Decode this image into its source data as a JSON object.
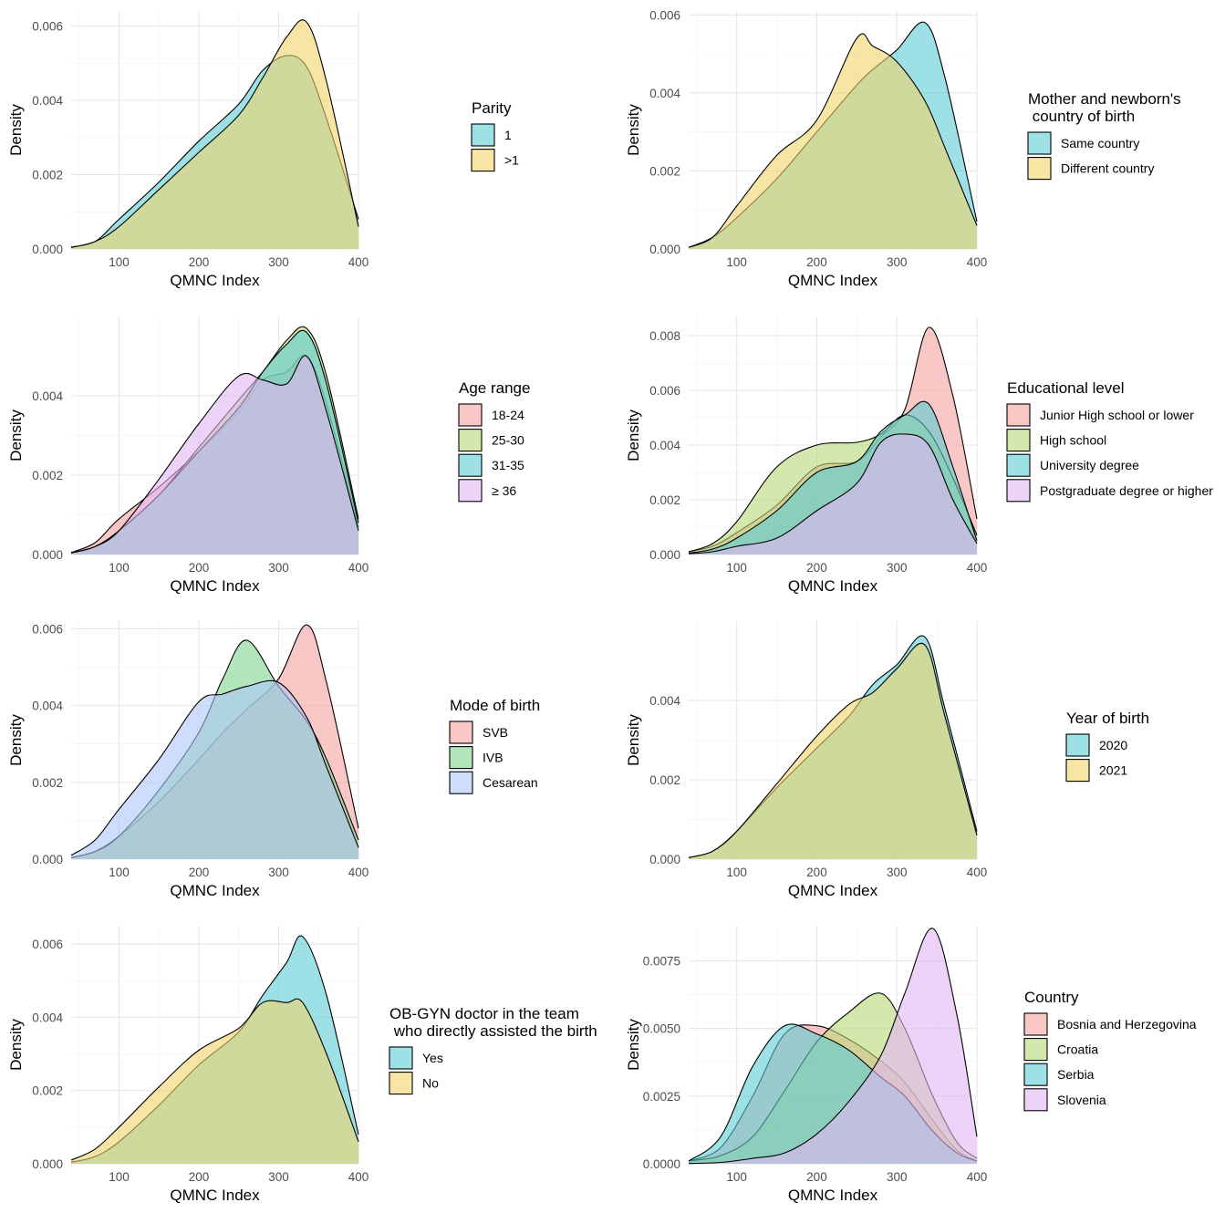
{
  "axis_x_label": "QMNC Index",
  "axis_y_label": "Density",
  "chart_data": [
    {
      "type": "area",
      "xlabel": "QMNC Index",
      "ylabel": "Density",
      "xlim": [
        40,
        400
      ],
      "ylim": [
        0,
        0.0064
      ],
      "xticks": [
        "100",
        "200",
        "300",
        "400"
      ],
      "yticks": [
        "0.000",
        "0.002",
        "0.004",
        "0.006"
      ],
      "ytick_values": [
        0,
        0.002,
        0.004,
        0.006
      ],
      "legend_title": [
        "Parity"
      ],
      "grid": true,
      "legend_position": "right",
      "x": [
        40,
        70,
        100,
        150,
        200,
        250,
        280,
        310,
        335,
        360,
        400
      ],
      "series": [
        {
          "name": "1",
          "color": "#5bcbd4",
          "values": [
            5e-05,
            0.0002,
            0.0008,
            0.0018,
            0.0029,
            0.0039,
            0.0048,
            0.0052,
            0.0049,
            0.0035,
            0.0008
          ]
        },
        {
          "name": ">1",
          "color": "#f2d36a",
          "values": [
            4e-05,
            0.0002,
            0.0006,
            0.0016,
            0.0026,
            0.0036,
            0.0046,
            0.0057,
            0.0061,
            0.0045,
            0.0006
          ]
        }
      ]
    },
    {
      "type": "area",
      "xlabel": "QMNC Index",
      "ylabel": "Density",
      "xlim": [
        40,
        400
      ],
      "ylim": [
        0,
        0.0061
      ],
      "xticks": [
        "100",
        "200",
        "300",
        "400"
      ],
      "yticks": [
        "0.000",
        "0.002",
        "0.004",
        "0.006"
      ],
      "ytick_values": [
        0,
        0.002,
        0.004,
        0.006
      ],
      "legend_title": [
        "Mother and newborn's",
        " country of birth"
      ],
      "grid": true,
      "legend_position": "right",
      "x": [
        40,
        70,
        100,
        150,
        200,
        250,
        270,
        300,
        335,
        360,
        400
      ],
      "series": [
        {
          "name": "Same country",
          "color": "#5bcbd4",
          "values": [
            4e-05,
            0.0003,
            0.0008,
            0.0018,
            0.003,
            0.0042,
            0.0046,
            0.0051,
            0.0058,
            0.0044,
            0.0007
          ]
        },
        {
          "name": "Different country",
          "color": "#f2d36a",
          "values": [
            4e-05,
            0.0003,
            0.0011,
            0.0024,
            0.0033,
            0.0054,
            0.0052,
            0.0048,
            0.0038,
            0.0026,
            0.0006
          ]
        }
      ]
    },
    {
      "type": "area",
      "xlabel": "QMNC Index",
      "ylabel": "Density",
      "xlim": [
        40,
        400
      ],
      "ylim": [
        0,
        0.006
      ],
      "xticks": [
        "100",
        "200",
        "300",
        "400"
      ],
      "yticks": [
        "0.000",
        "0.002",
        "0.004"
      ],
      "ytick_values": [
        0,
        0.002,
        0.004
      ],
      "legend_title": [
        "Age range"
      ],
      "grid": true,
      "legend_position": "right",
      "x": [
        40,
        70,
        100,
        150,
        200,
        250,
        280,
        310,
        335,
        360,
        400
      ],
      "series": [
        {
          "name": "18-24",
          "color": "#f5a3a0",
          "values": [
            5e-05,
            0.0003,
            0.0009,
            0.0017,
            0.0026,
            0.0036,
            0.0044,
            0.0046,
            0.005,
            0.0038,
            0.0007
          ]
        },
        {
          "name": "25-30",
          "color": "#b7d777",
          "values": [
            4e-05,
            0.0002,
            0.0006,
            0.0015,
            0.0027,
            0.0039,
            0.0046,
            0.0054,
            0.0057,
            0.0045,
            0.0009
          ]
        },
        {
          "name": "31-35",
          "color": "#5bcbd4",
          "values": [
            4e-05,
            0.0002,
            0.0006,
            0.0015,
            0.0026,
            0.0037,
            0.0046,
            0.0053,
            0.0056,
            0.0043,
            0.0008
          ]
        },
        {
          "name": "≥ 36",
          "color": "#e3b5f5",
          "values": [
            4e-05,
            0.0002,
            0.0006,
            0.0019,
            0.0033,
            0.0045,
            0.0044,
            0.0043,
            0.005,
            0.0036,
            0.0006
          ]
        }
      ]
    },
    {
      "type": "area",
      "xlabel": "QMNC Index",
      "ylabel": "Density",
      "xlim": [
        40,
        400
      ],
      "ylim": [
        0,
        0.0087
      ],
      "xticks": [
        "100",
        "200",
        "300",
        "400"
      ],
      "yticks": [
        "0.000",
        "0.002",
        "0.004",
        "0.006",
        "0.008"
      ],
      "ytick_values": [
        0,
        0.002,
        0.004,
        0.006,
        0.008
      ],
      "legend_title": [
        "Educational level"
      ],
      "grid": true,
      "legend_position": "right",
      "x": [
        40,
        70,
        100,
        150,
        200,
        250,
        280,
        310,
        340,
        370,
        400
      ],
      "series": [
        {
          "name": "Junior High school or lower",
          "color": "#f5a3a0",
          "values": [
            0.0001,
            0.0003,
            0.0008,
            0.0018,
            0.0032,
            0.0034,
            0.0043,
            0.0053,
            0.0083,
            0.0058,
            0.0013
          ]
        },
        {
          "name": "High school",
          "color": "#b7d777",
          "values": [
            0.0001,
            0.0004,
            0.0012,
            0.0032,
            0.004,
            0.0041,
            0.0044,
            0.0051,
            0.0045,
            0.0028,
            0.0007
          ]
        },
        {
          "name": "University degree",
          "color": "#5bcbd4",
          "values": [
            5e-05,
            0.0002,
            0.0006,
            0.0016,
            0.003,
            0.0034,
            0.0045,
            0.0051,
            0.0055,
            0.0032,
            0.0005
          ]
        },
        {
          "name": "Postgraduate degree or higher",
          "color": "#e3b5f5",
          "values": [
            3e-05,
            0.0001,
            0.0003,
            0.0006,
            0.0016,
            0.0026,
            0.0041,
            0.0044,
            0.004,
            0.002,
            0.0004
          ]
        }
      ]
    },
    {
      "type": "area",
      "xlabel": "QMNC Index",
      "ylabel": "Density",
      "xlim": [
        40,
        400
      ],
      "ylim": [
        0,
        0.0062
      ],
      "xticks": [
        "100",
        "200",
        "300",
        "400"
      ],
      "yticks": [
        "0.000",
        "0.002",
        "0.004",
        "0.006"
      ],
      "ytick_values": [
        0,
        0.002,
        0.004,
        0.006
      ],
      "legend_title": [
        "Mode of birth"
      ],
      "grid": true,
      "legend_position": "right",
      "x": [
        40,
        70,
        100,
        150,
        200,
        230,
        260,
        300,
        335,
        360,
        400
      ],
      "series": [
        {
          "name": "SVB",
          "color": "#f5a3a0",
          "values": [
            4e-05,
            0.0002,
            0.0006,
            0.0015,
            0.0026,
            0.0033,
            0.0039,
            0.0047,
            0.0061,
            0.0046,
            0.0008
          ]
        },
        {
          "name": "IVB",
          "color": "#7fd38f",
          "values": [
            4e-05,
            0.0002,
            0.0006,
            0.0018,
            0.0033,
            0.0047,
            0.0057,
            0.0045,
            0.0036,
            0.0026,
            0.0005
          ]
        },
        {
          "name": "Cesarean",
          "color": "#aec7f8",
          "values": [
            0.0001,
            0.0005,
            0.0013,
            0.0026,
            0.0041,
            0.0043,
            0.0045,
            0.0046,
            0.0037,
            0.0024,
            0.0003
          ]
        }
      ]
    },
    {
      "type": "area",
      "xlabel": "QMNC Index",
      "ylabel": "Density",
      "xlim": [
        40,
        400
      ],
      "ylim": [
        0,
        0.006
      ],
      "xticks": [
        "100",
        "200",
        "300",
        "400"
      ],
      "yticks": [
        "0.000",
        "0.002",
        "0.004"
      ],
      "ytick_values": [
        0,
        0.002,
        0.004
      ],
      "legend_title": [
        "Year of birth"
      ],
      "grid": true,
      "legend_position": "right",
      "x": [
        40,
        70,
        100,
        150,
        200,
        240,
        270,
        300,
        335,
        360,
        400
      ],
      "series": [
        {
          "name": "2020",
          "color": "#5bcbd4",
          "values": [
            4e-05,
            0.0002,
            0.0007,
            0.0018,
            0.0028,
            0.0036,
            0.0044,
            0.0049,
            0.0056,
            0.0038,
            0.0007
          ]
        },
        {
          "name": "2021",
          "color": "#f2d36a",
          "values": [
            4e-05,
            0.0002,
            0.0007,
            0.0019,
            0.0031,
            0.0039,
            0.0042,
            0.0048,
            0.0054,
            0.0036,
            0.0006
          ]
        }
      ]
    },
    {
      "type": "area",
      "xlabel": "QMNC Index",
      "ylabel": "Density",
      "xlim": [
        40,
        400
      ],
      "ylim": [
        0,
        0.0065
      ],
      "xticks": [
        "100",
        "200",
        "300",
        "400"
      ],
      "yticks": [
        "0.000",
        "0.002",
        "0.004",
        "0.006"
      ],
      "ytick_values": [
        0,
        0.002,
        0.004,
        0.006
      ],
      "legend_title": [
        "OB-GYN doctor in the team",
        " who directly assisted the birth"
      ],
      "grid": true,
      "legend_position": "right",
      "x": [
        40,
        70,
        100,
        150,
        200,
        250,
        280,
        310,
        330,
        360,
        400
      ],
      "series": [
        {
          "name": "Yes",
          "color": "#5bcbd4",
          "values": [
            4e-05,
            0.0002,
            0.0006,
            0.0016,
            0.0027,
            0.0036,
            0.0046,
            0.0055,
            0.0062,
            0.0046,
            0.0008
          ]
        },
        {
          "name": "No",
          "color": "#f2d36a",
          "values": [
            0.0001,
            0.0004,
            0.001,
            0.0021,
            0.0031,
            0.0037,
            0.0044,
            0.0044,
            0.0044,
            0.003,
            0.0006
          ]
        }
      ]
    },
    {
      "type": "area",
      "xlabel": "QMNC Index",
      "ylabel": "Density",
      "xlim": [
        40,
        400
      ],
      "ylim": [
        0,
        0.0088
      ],
      "xticks": [
        "100",
        "200",
        "300",
        "400"
      ],
      "yticks": [
        "0.0000",
        "0.0025",
        "0.0050",
        "0.0075"
      ],
      "ytick_values": [
        0,
        0.0025,
        0.005,
        0.0075
      ],
      "legend_title": [
        "Country"
      ],
      "grid": true,
      "legend_position": "right",
      "x": [
        40,
        80,
        120,
        160,
        200,
        240,
        280,
        310,
        345,
        375,
        400
      ],
      "series": [
        {
          "name": "Bosnia and Herzegovina",
          "color": "#f5a3a0",
          "values": [
            0.0001,
            0.0006,
            0.0025,
            0.0048,
            0.0051,
            0.0046,
            0.0038,
            0.003,
            0.0016,
            0.0005,
            0.0001
          ]
        },
        {
          "name": "Croatia",
          "color": "#b7d777",
          "values": [
            0.0001,
            0.0003,
            0.001,
            0.0027,
            0.0045,
            0.0056,
            0.0063,
            0.005,
            0.0025,
            0.0008,
            0.0002
          ]
        },
        {
          "name": "Serbia",
          "color": "#5bcbd4",
          "values": [
            0.0001,
            0.001,
            0.0036,
            0.0051,
            0.0048,
            0.0042,
            0.0032,
            0.0025,
            0.0012,
            0.0004,
            0.0001
          ]
        },
        {
          "name": "Slovenia",
          "color": "#e3b5f5",
          "values": [
            1e-05,
            5e-05,
            0.0002,
            0.0004,
            0.0011,
            0.0023,
            0.004,
            0.0063,
            0.0087,
            0.0055,
            0.001
          ]
        }
      ]
    }
  ]
}
